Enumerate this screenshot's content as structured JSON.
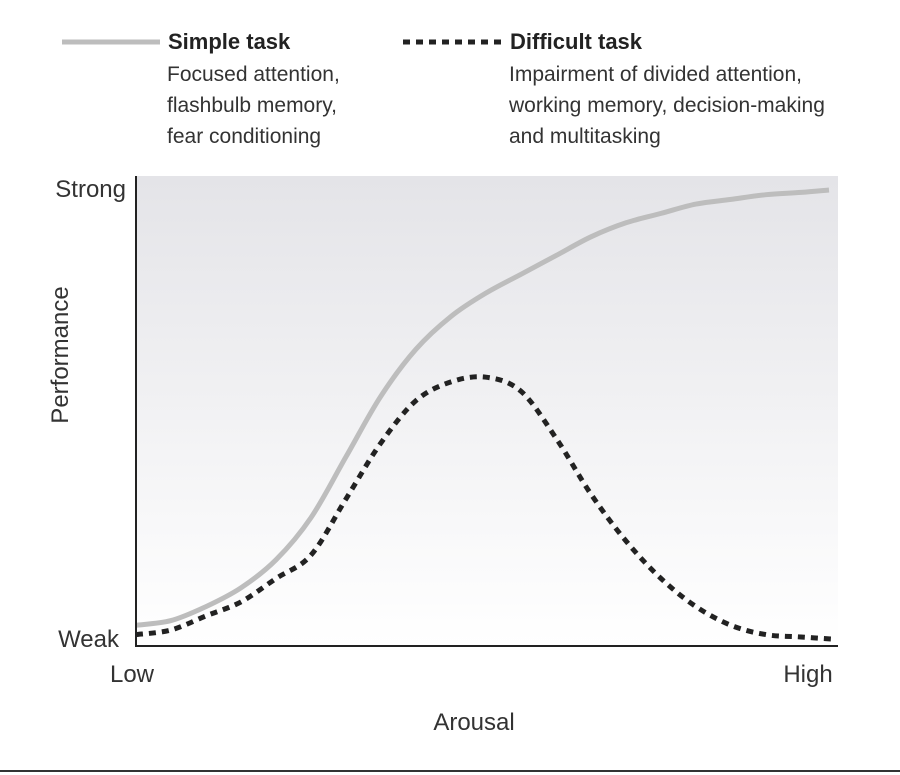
{
  "chart_data": {
    "type": "line",
    "xlabel": "Arousal",
    "ylabel": "Performance",
    "x_ticks": [
      "Low",
      "High"
    ],
    "y_ticks": [
      "Weak",
      "Strong"
    ],
    "xlim": [
      0,
      100
    ],
    "ylim": [
      0,
      100
    ],
    "grid": false,
    "legend_position": "top",
    "series": [
      {
        "name": "Simple task",
        "description": [
          "Focused attention,",
          "flashbulb memory,",
          "fear conditioning"
        ],
        "style": "solid",
        "color": "#bdbdbd",
        "x": [
          0,
          5,
          10,
          15,
          20,
          25,
          30,
          35,
          40,
          45,
          50,
          55,
          60,
          65,
          70,
          75,
          80,
          85,
          90,
          95,
          99
        ],
        "y": [
          4,
          5,
          8,
          12,
          18,
          27,
          40,
          53,
          63,
          70,
          75,
          79,
          83,
          87,
          90,
          92,
          94,
          95,
          96,
          96.5,
          97
        ]
      },
      {
        "name": "Difficult task",
        "description": [
          "Impairment of divided attention,",
          "working memory, decision-making",
          "and multitasking"
        ],
        "style": "dotted",
        "color": "#222222",
        "x": [
          0,
          5,
          10,
          15,
          20,
          25,
          30,
          35,
          40,
          45,
          50,
          55,
          60,
          65,
          70,
          75,
          80,
          85,
          90,
          95,
          100
        ],
        "y": [
          2,
          3,
          6,
          9,
          14,
          19,
          31,
          43,
          52,
          56,
          57,
          54,
          44,
          32,
          22,
          14,
          8,
          4,
          2,
          1.5,
          1
        ]
      }
    ]
  }
}
